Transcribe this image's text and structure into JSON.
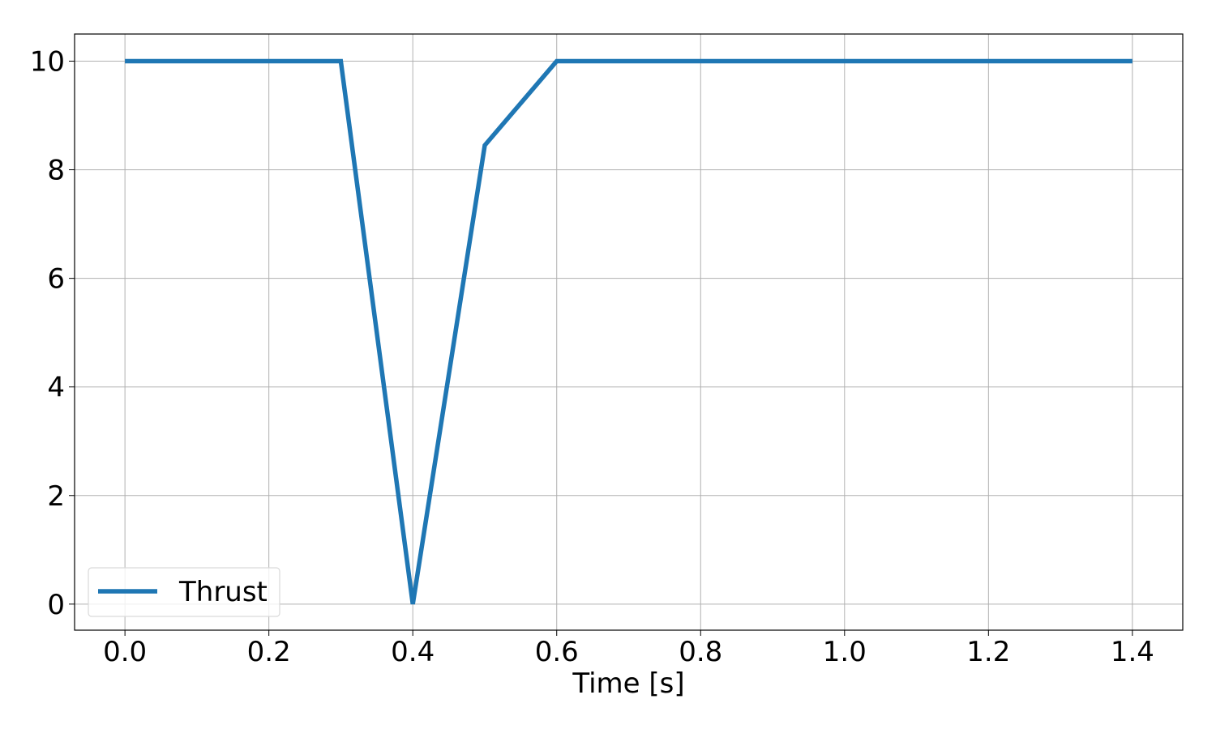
{
  "chart_data": {
    "type": "line",
    "title": "",
    "xlabel": "Time [s]",
    "ylabel": "",
    "xlim": [
      -0.07,
      1.47
    ],
    "ylim": [
      -0.48,
      10.5
    ],
    "xticks": [
      0.0,
      0.2,
      0.4,
      0.6,
      0.8,
      1.0,
      1.2,
      1.4
    ],
    "xtick_labels": [
      "0.0",
      "0.2",
      "0.4",
      "0.6",
      "0.8",
      "1.0",
      "1.2",
      "1.4"
    ],
    "yticks": [
      0,
      2,
      4,
      6,
      8,
      10
    ],
    "ytick_labels": [
      "0",
      "2",
      "4",
      "6",
      "8",
      "10"
    ],
    "grid": true,
    "legend_position": "lower-left",
    "series": [
      {
        "name": "Thrust",
        "color": "#1f77b4",
        "x": [
          0.0,
          0.3,
          0.4,
          0.5,
          0.6,
          1.4
        ],
        "y": [
          10.0,
          10.0,
          0.0,
          8.45,
          10.0,
          10.0
        ]
      }
    ]
  }
}
